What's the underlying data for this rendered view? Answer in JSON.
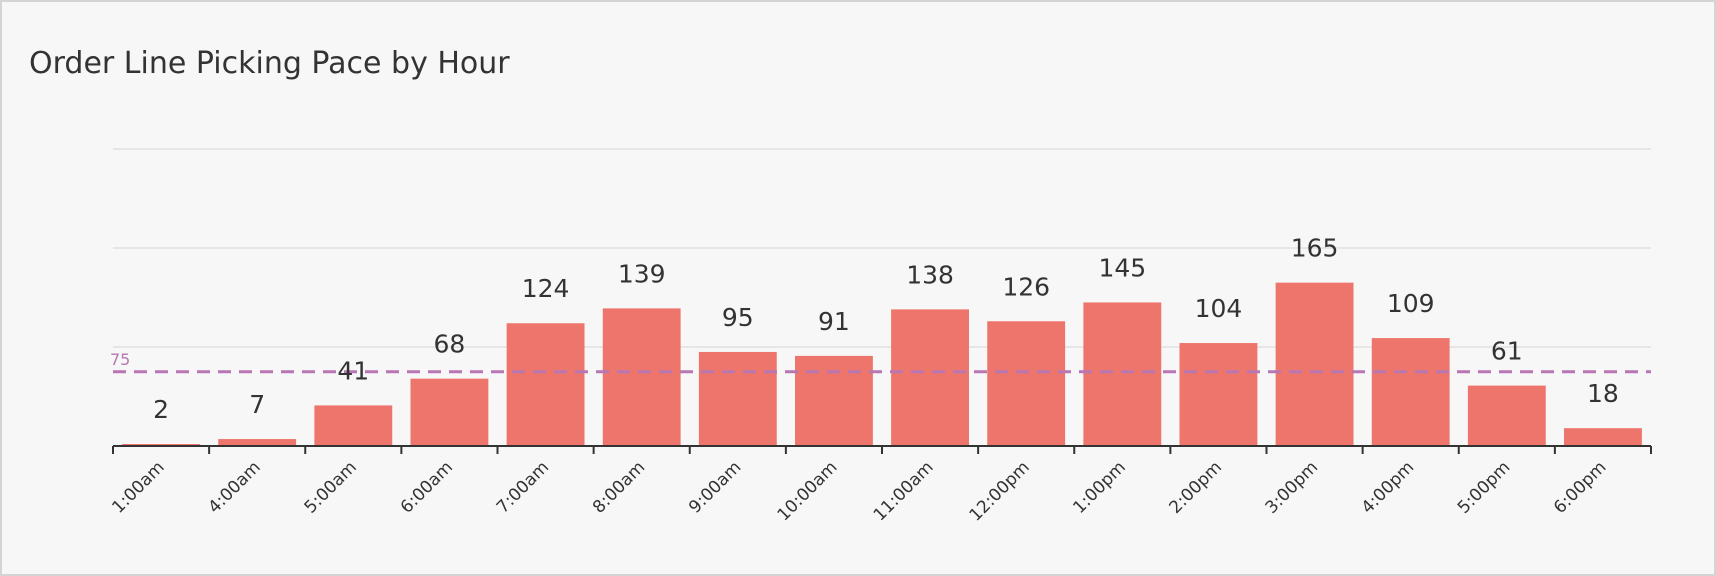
{
  "title": "Order Line Picking Pace by Hour",
  "colors": {
    "bar": "#ee756b",
    "reference_line": "#b877b3",
    "grid": "#e0e0e0",
    "axis": "#333333",
    "text": "#333333"
  },
  "chart_data": {
    "type": "bar",
    "title": "Order Line Picking Pace by Hour",
    "xlabel": "",
    "ylabel": "",
    "categories": [
      "1:00am",
      "4:00am",
      "5:00am",
      "6:00am",
      "7:00am",
      "8:00am",
      "9:00am",
      "10:00am",
      "11:00am",
      "12:00pm",
      "1:00pm",
      "2:00pm",
      "3:00pm",
      "4:00pm",
      "5:00pm",
      "6:00pm"
    ],
    "values": [
      2,
      7,
      41,
      68,
      124,
      139,
      95,
      91,
      138,
      126,
      145,
      104,
      165,
      109,
      61,
      18
    ],
    "ylim": [
      0,
      300
    ],
    "gridlines": [
      100,
      200,
      300
    ],
    "reference_line": {
      "value": 75,
      "label": "75"
    },
    "data_labels": true,
    "tick_label_rotation": -45,
    "grid": true,
    "legend": "none"
  }
}
